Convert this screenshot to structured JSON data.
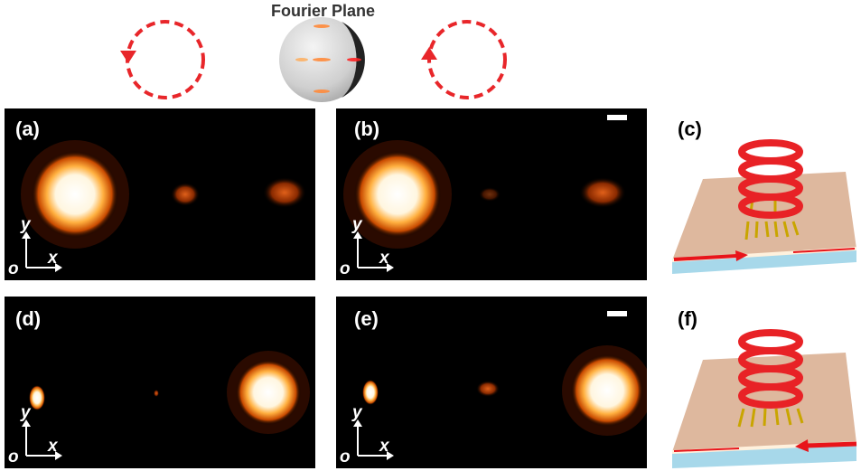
{
  "figure": {
    "fourier_plane_title": "Fourier Plane",
    "panels": [
      {
        "label": "(a)"
      },
      {
        "label": "(b)"
      },
      {
        "label": "(c)"
      },
      {
        "label": "(d)"
      },
      {
        "label": "(e)"
      },
      {
        "label": "(f)"
      }
    ],
    "axis": {
      "y": "y",
      "origin": "o",
      "x": "x"
    }
  },
  "colors": {
    "circle_dashed": "#e8262a",
    "substrate": "#deb89e",
    "waveguide": "#a7d8ea",
    "helix": "#e82226",
    "arrow": "#e8141a"
  }
}
